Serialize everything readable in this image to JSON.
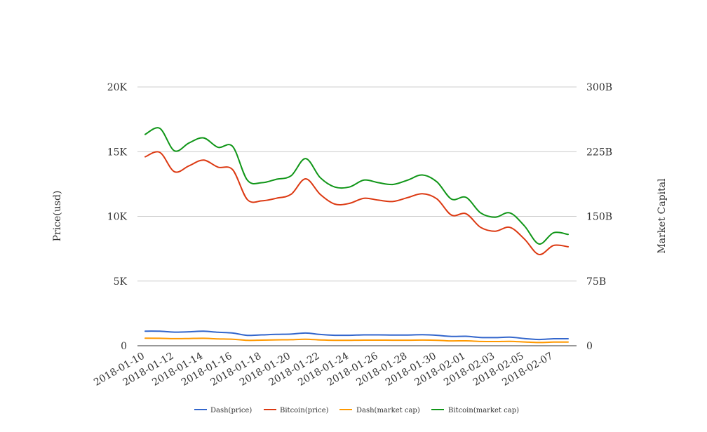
{
  "chart_data": {
    "type": "line",
    "title": "",
    "x": [
      "2018-01-10",
      "2018-01-11",
      "2018-01-12",
      "2018-01-13",
      "2018-01-14",
      "2018-01-15",
      "2018-01-16",
      "2018-01-17",
      "2018-01-18",
      "2018-01-19",
      "2018-01-20",
      "2018-01-21",
      "2018-01-22",
      "2018-01-23",
      "2018-01-24",
      "2018-01-25",
      "2018-01-26",
      "2018-01-27",
      "2018-01-28",
      "2018-01-29",
      "2018-01-30",
      "2018-01-31",
      "2018-02-01",
      "2018-02-02",
      "2018-02-03",
      "2018-02-04",
      "2018-02-05",
      "2018-02-06",
      "2018-02-07",
      "2018-02-08"
    ],
    "x_tick_labels": [
      "2018-01-10",
      "2018-01-12",
      "2018-01-14",
      "2018-01-16",
      "2018-01-18",
      "2018-01-20",
      "2018-01-22",
      "2018-01-24",
      "2018-01-26",
      "2018-01-28",
      "2018-01-30",
      "2018-02-01",
      "2018-02-03",
      "2018-02-05",
      "2018-02-07"
    ],
    "y_left": {
      "label": "Price(usd)",
      "ylim": [
        0,
        20000
      ],
      "ticks": [
        0,
        5000,
        10000,
        15000,
        20000
      ],
      "tick_labels": [
        "0",
        "5K",
        "10K",
        "15K",
        "20K"
      ]
    },
    "y_right": {
      "label": "Market Capital",
      "ylim": [
        0,
        300000000000
      ],
      "ticks": [
        0,
        75000000000,
        150000000000,
        225000000000,
        300000000000
      ],
      "tick_labels": [
        "0",
        "75B",
        "150B",
        "225B",
        "300B"
      ]
    },
    "grid": true,
    "legend_position": "bottom",
    "series": [
      {
        "name": "Dash(price)",
        "axis": "left",
        "color": "#3366cc",
        "values": [
          1130,
          1120,
          1050,
          1080,
          1120,
          1040,
          980,
          800,
          840,
          880,
          900,
          980,
          870,
          810,
          810,
          840,
          840,
          830,
          830,
          850,
          810,
          720,
          730,
          640,
          630,
          660,
          560,
          480,
          540,
          540
        ]
      },
      {
        "name": "Bitcoin(price)",
        "axis": "left",
        "color": "#dc3912",
        "values": [
          14600,
          14950,
          13450,
          13900,
          14350,
          13800,
          13600,
          11300,
          11200,
          11400,
          11700,
          12900,
          11700,
          10950,
          11000,
          11400,
          11250,
          11150,
          11450,
          11750,
          11350,
          10100,
          10200,
          9150,
          8850,
          9150,
          8250,
          7050,
          7750,
          7650
        ]
      },
      {
        "name": "Dash(market cap)",
        "axis": "right",
        "color": "#ff9900",
        "values": [
          8700000000,
          8600000000,
          8200000000,
          8400000000,
          8600000000,
          8000000000,
          7600000000,
          6300000000,
          6500000000,
          6800000000,
          7000000000,
          7600000000,
          6700000000,
          6300000000,
          6300000000,
          6500000000,
          6500000000,
          6400000000,
          6400000000,
          6600000000,
          6300000000,
          5600000000,
          5700000000,
          5000000000,
          4900000000,
          5100000000,
          4400000000,
          3700000000,
          4200000000,
          4200000000
        ]
      },
      {
        "name": "Bitcoin(market cap)",
        "axis": "right",
        "color": "#109618",
        "values": [
          245000000000,
          252000000000,
          226000000000,
          235000000000,
          241000000000,
          230000000000,
          231000000000,
          192000000000,
          189000000000,
          193000000000,
          197000000000,
          217000000000,
          195000000000,
          184000000000,
          184000000000,
          192000000000,
          189000000000,
          187000000000,
          192000000000,
          198000000000,
          190000000000,
          170000000000,
          172000000000,
          154000000000,
          149000000000,
          154000000000,
          139000000000,
          118000000000,
          131000000000,
          129000000000
        ]
      }
    ]
  }
}
